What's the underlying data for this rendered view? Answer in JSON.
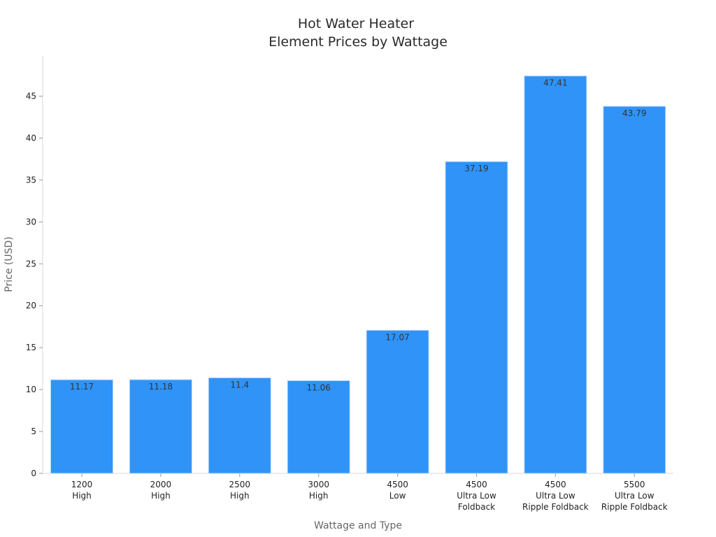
{
  "chart_data": {
    "type": "bar",
    "title_lines": [
      "Hot Water Heater",
      "Element Prices by Wattage"
    ],
    "xlabel": "Wattage and Type",
    "ylabel": "Price (USD)",
    "categories": [
      [
        "1200",
        "High"
      ],
      [
        "2000",
        "High"
      ],
      [
        "2500",
        "High"
      ],
      [
        "3000",
        "High"
      ],
      [
        "4500",
        "Low"
      ],
      [
        "4500",
        "Ultra Low",
        "Foldback"
      ],
      [
        "4500",
        "Ultra Low",
        "Ripple Foldback"
      ],
      [
        "5500",
        "Ultra Low",
        "Ripple Foldback"
      ]
    ],
    "values": [
      11.17,
      11.18,
      11.4,
      11.06,
      17.07,
      37.19,
      47.41,
      43.79
    ],
    "data_labels": [
      "11.17",
      "11.18",
      "11.4",
      "11.06",
      "17.07",
      "37.19",
      "47.41",
      "43.79"
    ],
    "y_ticks": [
      0,
      5,
      10,
      15,
      20,
      25,
      30,
      35,
      40,
      45
    ],
    "ylim": [
      0,
      49.8
    ],
    "grid": false,
    "legend": "none",
    "bar_color": "#2f93f8"
  }
}
